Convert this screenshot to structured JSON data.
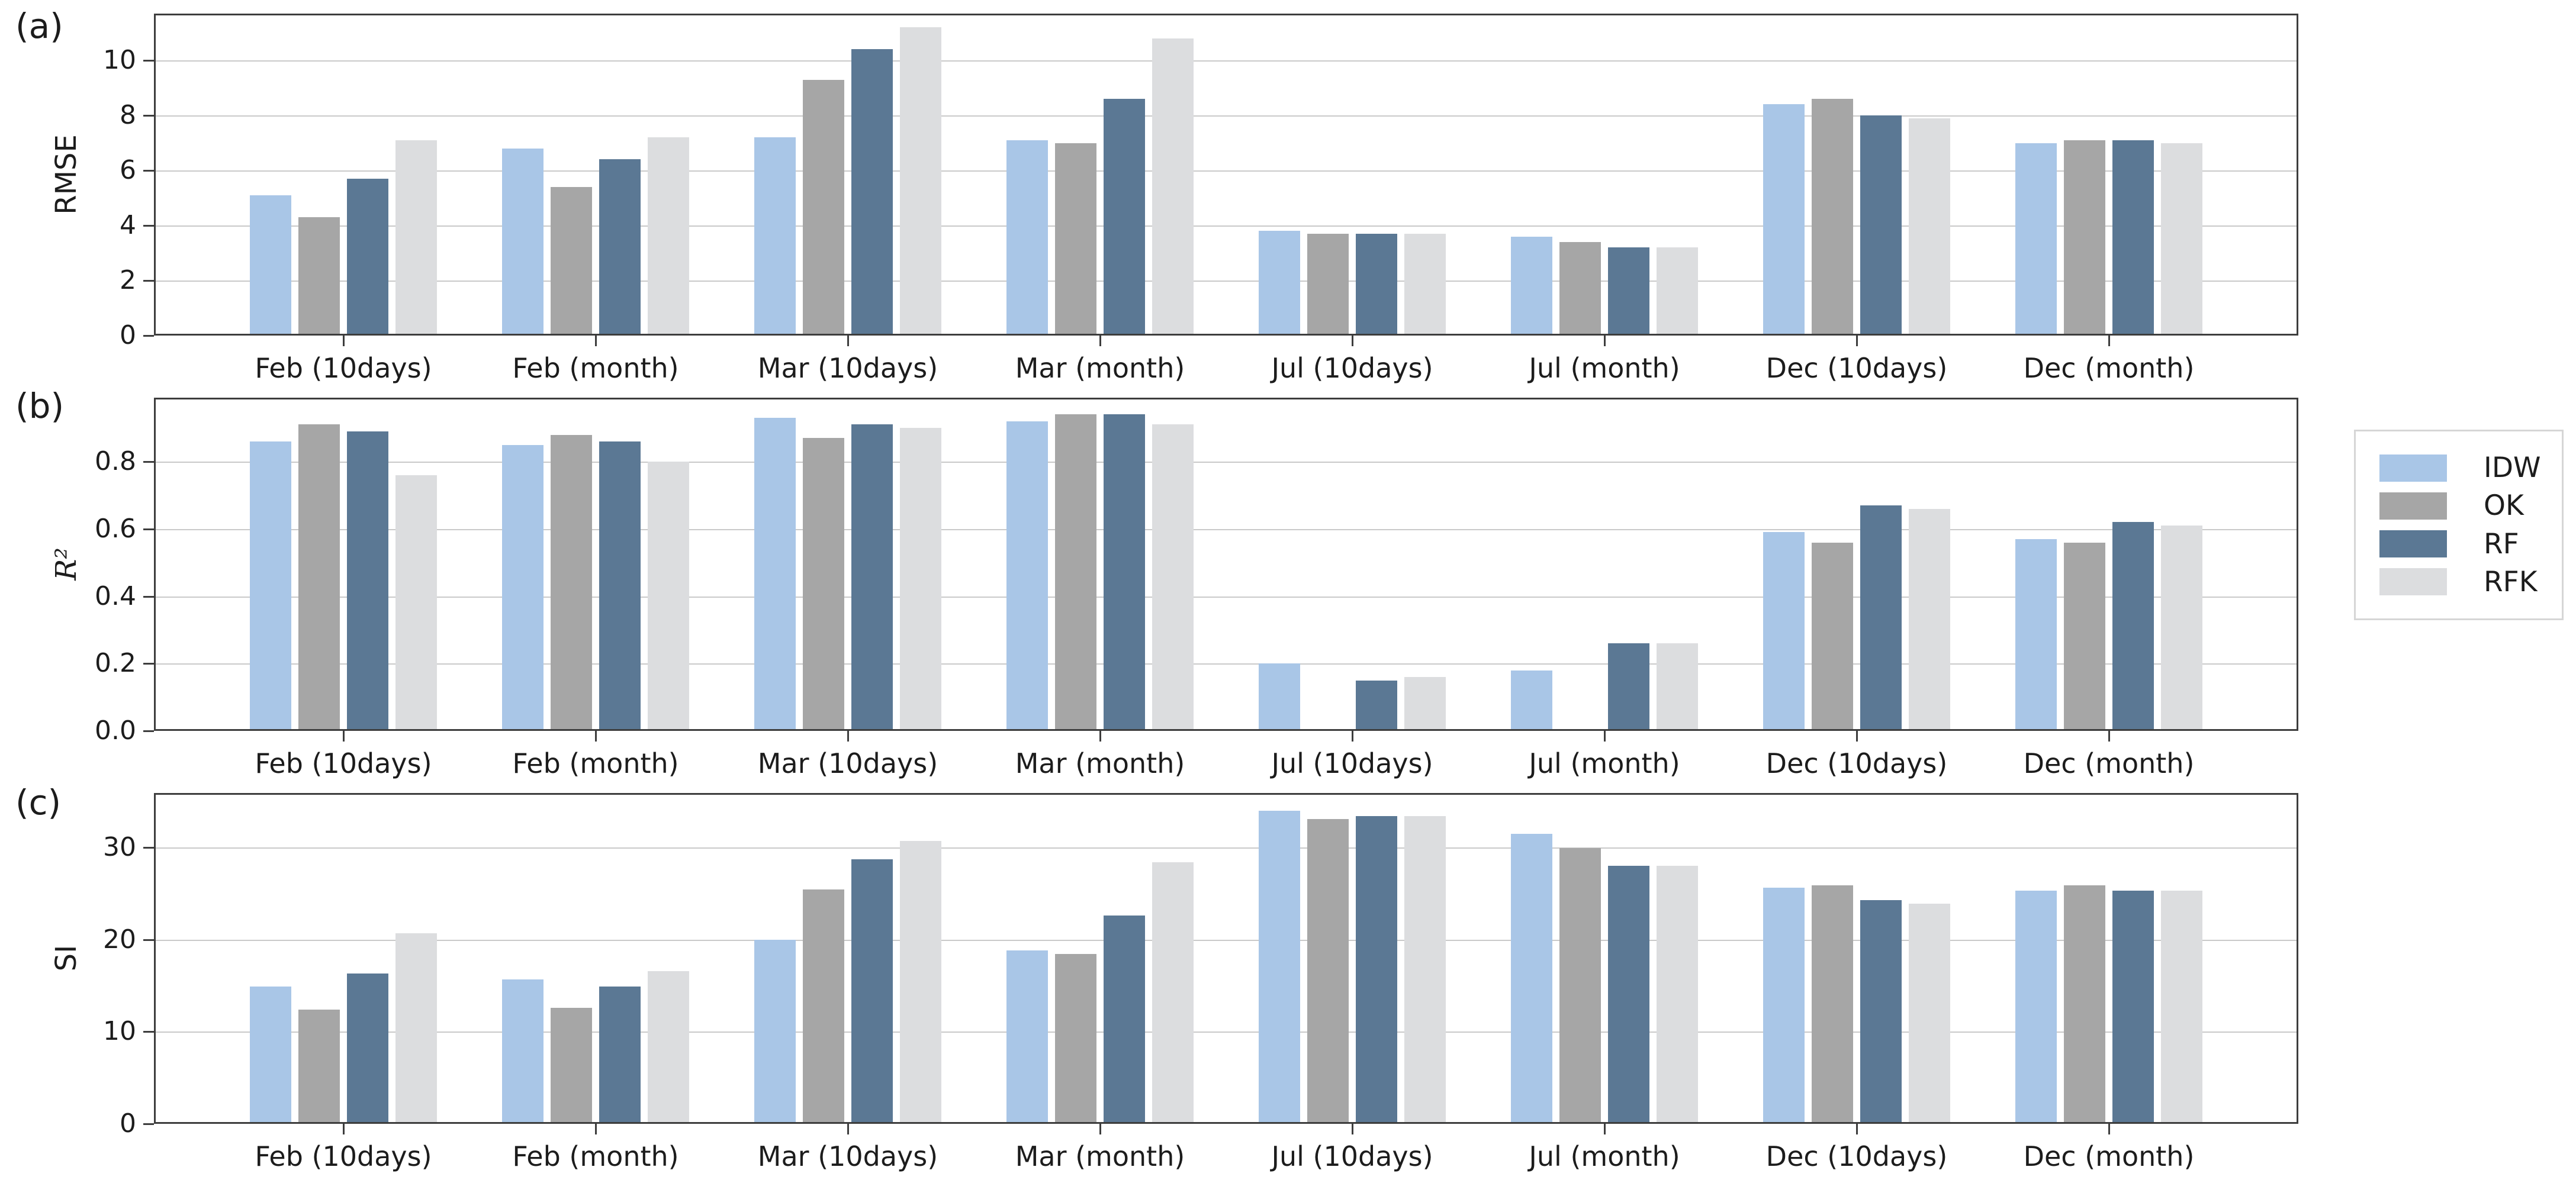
{
  "legend": {
    "items": [
      {
        "label": "IDW",
        "color": "#a9c6e7"
      },
      {
        "label": "OK",
        "color": "#a6a6a6"
      },
      {
        "label": "RF",
        "color": "#5b7894"
      },
      {
        "label": "RFK",
        "color": "#dcdddf"
      }
    ],
    "position": "center-right",
    "border_color": "#d6d6d6"
  },
  "panels": [
    {
      "letter": "(a)",
      "ylabel": "RMSE",
      "yticks": [
        {
          "v": 0,
          "label": "0"
        },
        {
          "v": 2,
          "label": "2"
        },
        {
          "v": 4,
          "label": "4"
        },
        {
          "v": 6,
          "label": "6"
        },
        {
          "v": 8,
          "label": "8"
        },
        {
          "v": 10,
          "label": "10"
        }
      ]
    },
    {
      "letter": "(b)",
      "ylabel": "R²",
      "yticks": [
        {
          "v": 0,
          "label": "0.0"
        },
        {
          "v": 0.2,
          "label": "0.2"
        },
        {
          "v": 0.4,
          "label": "0.4"
        },
        {
          "v": 0.6,
          "label": "0.6"
        },
        {
          "v": 0.8,
          "label": "0.8"
        }
      ]
    },
    {
      "letter": "(c)",
      "ylabel": "SI",
      "yticks": [
        {
          "v": 0,
          "label": "0"
        },
        {
          "v": 10,
          "label": "10"
        },
        {
          "v": 20,
          "label": "20"
        },
        {
          "v": 30,
          "label": "30"
        }
      ]
    }
  ],
  "chart_data": [
    {
      "type": "bar",
      "title": "(a)",
      "ylabel": "RMSE",
      "xlabel": "",
      "grid": true,
      "ylim": [
        0,
        11.7
      ],
      "legend_position": "outside-right",
      "categories": [
        "Feb (10days)",
        "Feb (month)",
        "Mar (10days)",
        "Mar (month)",
        "Jul (10days)",
        "Jul (month)",
        "Dec (10days)",
        "Dec (month)"
      ],
      "series": [
        {
          "name": "IDW",
          "values": [
            5.1,
            6.8,
            7.2,
            7.1,
            3.8,
            3.6,
            8.4,
            7.0
          ]
        },
        {
          "name": "OK",
          "values": [
            4.3,
            5.4,
            9.3,
            7.0,
            3.7,
            3.4,
            8.6,
            7.1
          ]
        },
        {
          "name": "RF",
          "values": [
            5.7,
            6.4,
            10.4,
            8.6,
            3.7,
            3.2,
            8.0,
            7.1
          ]
        },
        {
          "name": "RFK",
          "values": [
            7.1,
            7.2,
            11.2,
            10.8,
            3.7,
            3.2,
            7.9,
            7.0
          ]
        }
      ]
    },
    {
      "type": "bar",
      "title": "(b)",
      "ylabel": "R²",
      "xlabel": "",
      "grid": true,
      "ylim": [
        0,
        0.99
      ],
      "categories": [
        "Feb (10days)",
        "Feb (month)",
        "Mar (10days)",
        "Mar (month)",
        "Jul (10days)",
        "Jul (month)",
        "Dec (10days)",
        "Dec (month)"
      ],
      "series": [
        {
          "name": "IDW",
          "values": [
            0.86,
            0.85,
            0.93,
            0.92,
            0.2,
            0.18,
            0.59,
            0.57
          ]
        },
        {
          "name": "OK",
          "values": [
            0.91,
            0.88,
            0.87,
            0.94,
            0,
            0,
            0.56,
            0.56
          ]
        },
        {
          "name": "RF",
          "values": [
            0.89,
            0.86,
            0.91,
            0.94,
            0.15,
            0.26,
            0.67,
            0.62
          ]
        },
        {
          "name": "RFK",
          "values": [
            0.76,
            0.8,
            0.9,
            0.91,
            0.16,
            0.26,
            0.66,
            0.61
          ]
        }
      ]
    },
    {
      "type": "bar",
      "title": "(c)",
      "ylabel": "SI",
      "xlabel": "",
      "grid": true,
      "ylim": [
        0,
        35.9
      ],
      "categories": [
        "Feb (10days)",
        "Feb (month)",
        "Mar (10days)",
        "Mar (month)",
        "Jul (10days)",
        "Jul (month)",
        "Dec (10days)",
        "Dec (month)"
      ],
      "series": [
        {
          "name": "IDW",
          "values": [
            14.9,
            15.7,
            20.0,
            18.8,
            34.0,
            31.5,
            25.6,
            25.3
          ]
        },
        {
          "name": "OK",
          "values": [
            12.4,
            12.6,
            25.4,
            18.4,
            33.1,
            29.9,
            25.9,
            25.9
          ]
        },
        {
          "name": "RF",
          "values": [
            16.3,
            14.9,
            28.7,
            22.6,
            33.4,
            28.0,
            24.3,
            25.3
          ]
        },
        {
          "name": "RFK",
          "values": [
            20.7,
            16.6,
            30.7,
            28.4,
            33.4,
            28.0,
            23.9,
            25.3
          ]
        }
      ]
    }
  ]
}
